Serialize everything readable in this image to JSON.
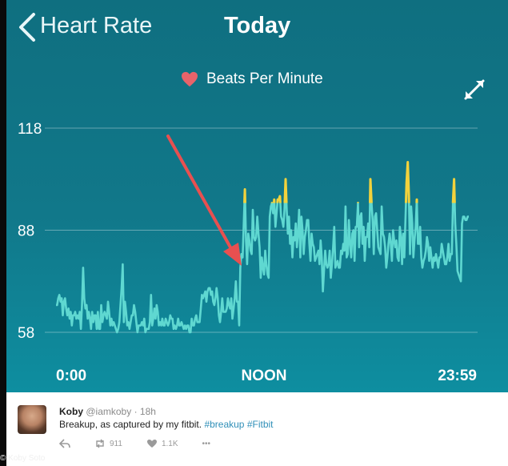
{
  "header": {
    "back_label": "Heart Rate",
    "title": "Today"
  },
  "legend": {
    "icon": "heart-icon",
    "label": "Beats Per Minute",
    "heart_color": "#e8636a"
  },
  "chart_data": {
    "type": "line",
    "title": "",
    "xlabel": "",
    "ylabel": "",
    "ylim": [
      58,
      118
    ],
    "y_ticks": [
      58,
      88,
      118
    ],
    "x_ticks": [
      "0:00",
      "NOON",
      "23:59"
    ],
    "line_color": "#5fd8d1",
    "highlight_color": "#f2d23c",
    "highlight_threshold": 96,
    "series": [
      {
        "values": [
          66,
          66,
          68,
          69,
          67,
          68,
          63,
          67,
          68,
          65,
          63,
          65,
          62,
          64,
          60,
          63,
          63,
          64,
          62,
          63,
          62,
          64,
          59,
          66,
          77,
          68,
          65,
          66,
          62,
          64,
          62,
          59,
          64,
          61,
          63,
          63,
          59,
          64,
          59,
          59,
          66,
          61,
          63,
          64,
          63,
          62,
          67,
          64,
          60,
          62,
          60,
          61,
          60,
          59,
          58,
          59,
          61,
          66,
          71,
          78,
          61,
          67,
          64,
          60,
          61,
          59,
          61,
          63,
          63,
          66,
          64,
          61,
          58,
          60,
          60,
          60,
          61,
          60,
          62,
          58,
          59,
          59,
          59,
          61,
          69,
          60,
          62,
          65,
          62,
          66,
          64,
          60,
          61,
          60,
          62,
          60,
          60,
          62,
          61,
          60,
          61,
          63,
          62,
          62,
          59,
          60,
          59,
          60,
          62,
          60,
          60,
          61,
          60,
          59,
          60,
          59,
          60,
          60,
          58,
          58,
          62,
          60,
          60,
          62,
          63,
          61,
          61,
          61,
          65,
          69,
          68,
          69,
          70,
          67,
          70,
          71,
          71,
          69,
          70,
          67,
          66,
          68,
          71,
          68,
          63,
          61,
          64,
          68,
          64,
          64,
          64,
          65,
          68,
          66,
          65,
          68,
          62,
          65,
          68,
          73,
          67,
          67,
          60,
          77,
          81,
          80,
          90,
          100,
          85,
          78,
          87,
          85,
          82,
          81,
          94,
          86,
          85,
          86,
          92,
          87,
          83,
          74,
          80,
          77,
          75,
          82,
          78,
          75,
          74,
          92,
          95,
          96,
          93,
          97,
          89,
          93,
          97,
          97,
          98,
          92,
          91,
          89,
          94,
          103,
          94,
          87,
          92,
          84,
          88,
          80,
          86,
          85,
          90,
          83,
          87,
          94,
          80,
          92,
          88,
          81,
          86,
          88,
          91,
          91,
          84,
          79,
          87,
          84,
          83,
          79,
          80,
          81,
          82,
          78,
          85,
          80,
          70,
          76,
          82,
          78,
          77,
          78,
          82,
          74,
          78,
          83,
          89,
          77,
          78,
          79,
          77,
          77,
          82,
          81,
          84,
          82,
          95,
          80,
          81,
          91,
          84,
          80,
          87,
          88,
          79,
          89,
          89,
          96,
          83,
          92,
          93,
          84,
          89,
          79,
          86,
          86,
          90,
          83,
          103,
          96,
          91,
          81,
          92,
          93,
          88,
          83,
          82,
          81,
          95,
          87,
          86,
          83,
          77,
          80,
          84,
          87,
          84,
          79,
          88,
          85,
          83,
          85,
          80,
          79,
          89,
          86,
          78,
          87,
          80,
          91,
          102,
          108,
          98,
          81,
          95,
          90,
          80,
          85,
          89,
          97,
          84,
          84,
          89,
          80,
          77,
          79,
          80,
          82,
          86,
          84,
          79,
          83,
          80,
          77,
          80,
          79,
          81,
          79,
          77,
          80,
          80,
          84,
          82,
          80,
          78,
          78,
          80,
          84,
          79,
          81,
          81,
          96,
          103,
          90,
          84,
          76,
          75,
          74,
          73,
          90,
          92,
          92,
          91,
          91,
          92,
          92
        ]
      }
    ]
  },
  "tweet": {
    "name": "Koby",
    "handle": "@iamkoby",
    "sep": "·",
    "time": "18h",
    "text": "Breakup, as captured by my fitbit.",
    "tag1": "#breakup",
    "tag2": "#Fitbit",
    "retweets": "911",
    "likes": "1.1K",
    "more": "•••"
  },
  "credit": "© Koby Soto",
  "annotation": {
    "arrow_color": "#e85050"
  }
}
